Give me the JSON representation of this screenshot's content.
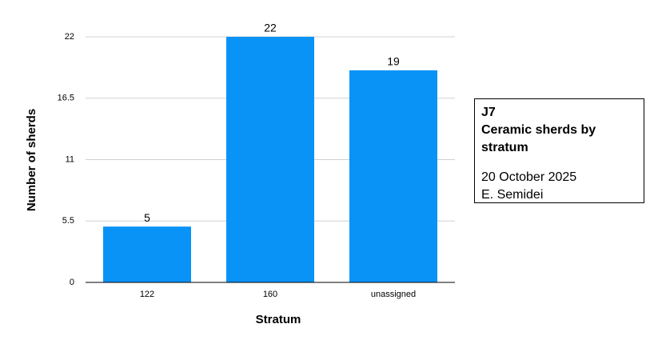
{
  "chart_data": {
    "type": "bar",
    "x_label": "Stratum",
    "y_label": "Number of sherds",
    "categories": [
      "122",
      "160",
      "unassigned"
    ],
    "values": [
      5,
      22,
      19
    ],
    "color": "#0a93f7",
    "ylim": [
      0,
      22
    ],
    "yticks": [
      0,
      5.5,
      11,
      16.5,
      22
    ],
    "grid": true,
    "annotations": [
      "J7",
      "Ceramic sherds by stratum",
      "20 October 2025",
      "E. Semidei"
    ]
  }
}
